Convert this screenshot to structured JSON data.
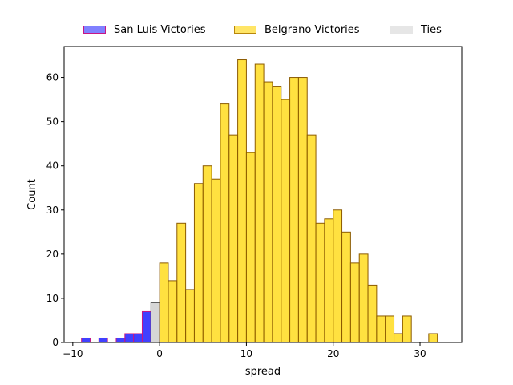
{
  "chart_data": {
    "type": "bar",
    "xlabel": "spread",
    "ylabel": "Count",
    "xlim": [
      -11,
      34.8
    ],
    "ylim": [
      0,
      67
    ],
    "xticks": [
      -10,
      0,
      10,
      20,
      30
    ],
    "yticks": [
      0,
      10,
      20,
      30,
      40,
      50,
      60
    ],
    "bin_width": 1,
    "legend_position": "top-center",
    "series": [
      {
        "name": "San Luis Victories",
        "color": "#0000ff",
        "bins": [
          {
            "x0": -9,
            "count": 1
          },
          {
            "x0": -7,
            "count": 1
          },
          {
            "x0": -5,
            "count": 1
          },
          {
            "x0": -4,
            "count": 2
          },
          {
            "x0": -3,
            "count": 2
          },
          {
            "x0": -2,
            "count": 7
          }
        ]
      },
      {
        "name": "Ties",
        "color": "#d3d3d3",
        "bins": [
          {
            "x0": -1,
            "count": 9
          }
        ]
      },
      {
        "name": "Belgrano Victories",
        "color": "#ffd700",
        "bins": [
          {
            "x0": 0,
            "count": 18
          },
          {
            "x0": 1,
            "count": 14
          },
          {
            "x0": 2,
            "count": 27
          },
          {
            "x0": 3,
            "count": 12
          },
          {
            "x0": 4,
            "count": 36
          },
          {
            "x0": 5,
            "count": 40
          },
          {
            "x0": 6,
            "count": 37
          },
          {
            "x0": 7,
            "count": 54
          },
          {
            "x0": 8,
            "count": 47
          },
          {
            "x0": 9,
            "count": 64
          },
          {
            "x0": 10,
            "count": 43
          },
          {
            "x0": 11,
            "count": 63
          },
          {
            "x0": 12,
            "count": 59
          },
          {
            "x0": 13,
            "count": 58
          },
          {
            "x0": 14,
            "count": 55
          },
          {
            "x0": 15,
            "count": 60
          },
          {
            "x0": 16,
            "count": 60
          },
          {
            "x0": 17,
            "count": 47
          },
          {
            "x0": 18,
            "count": 27
          },
          {
            "x0": 19,
            "count": 28
          },
          {
            "x0": 20,
            "count": 30
          },
          {
            "x0": 21,
            "count": 25
          },
          {
            "x0": 22,
            "count": 18
          },
          {
            "x0": 23,
            "count": 20
          },
          {
            "x0": 24,
            "count": 13
          },
          {
            "x0": 25,
            "count": 6
          },
          {
            "x0": 26,
            "count": 6
          },
          {
            "x0": 27,
            "count": 2
          },
          {
            "x0": 28,
            "count": 6
          },
          {
            "x0": 31,
            "count": 2
          }
        ]
      }
    ],
    "legend": [
      {
        "label": "San Luis Victories",
        "color": "#8080ff",
        "edge": "#c71585"
      },
      {
        "label": "Belgrano Victories",
        "color": "#ffe566",
        "edge": "#b8860b"
      },
      {
        "label": "Ties",
        "color": "#e6e6e6",
        "edge": "#e6e6e6"
      }
    ]
  }
}
